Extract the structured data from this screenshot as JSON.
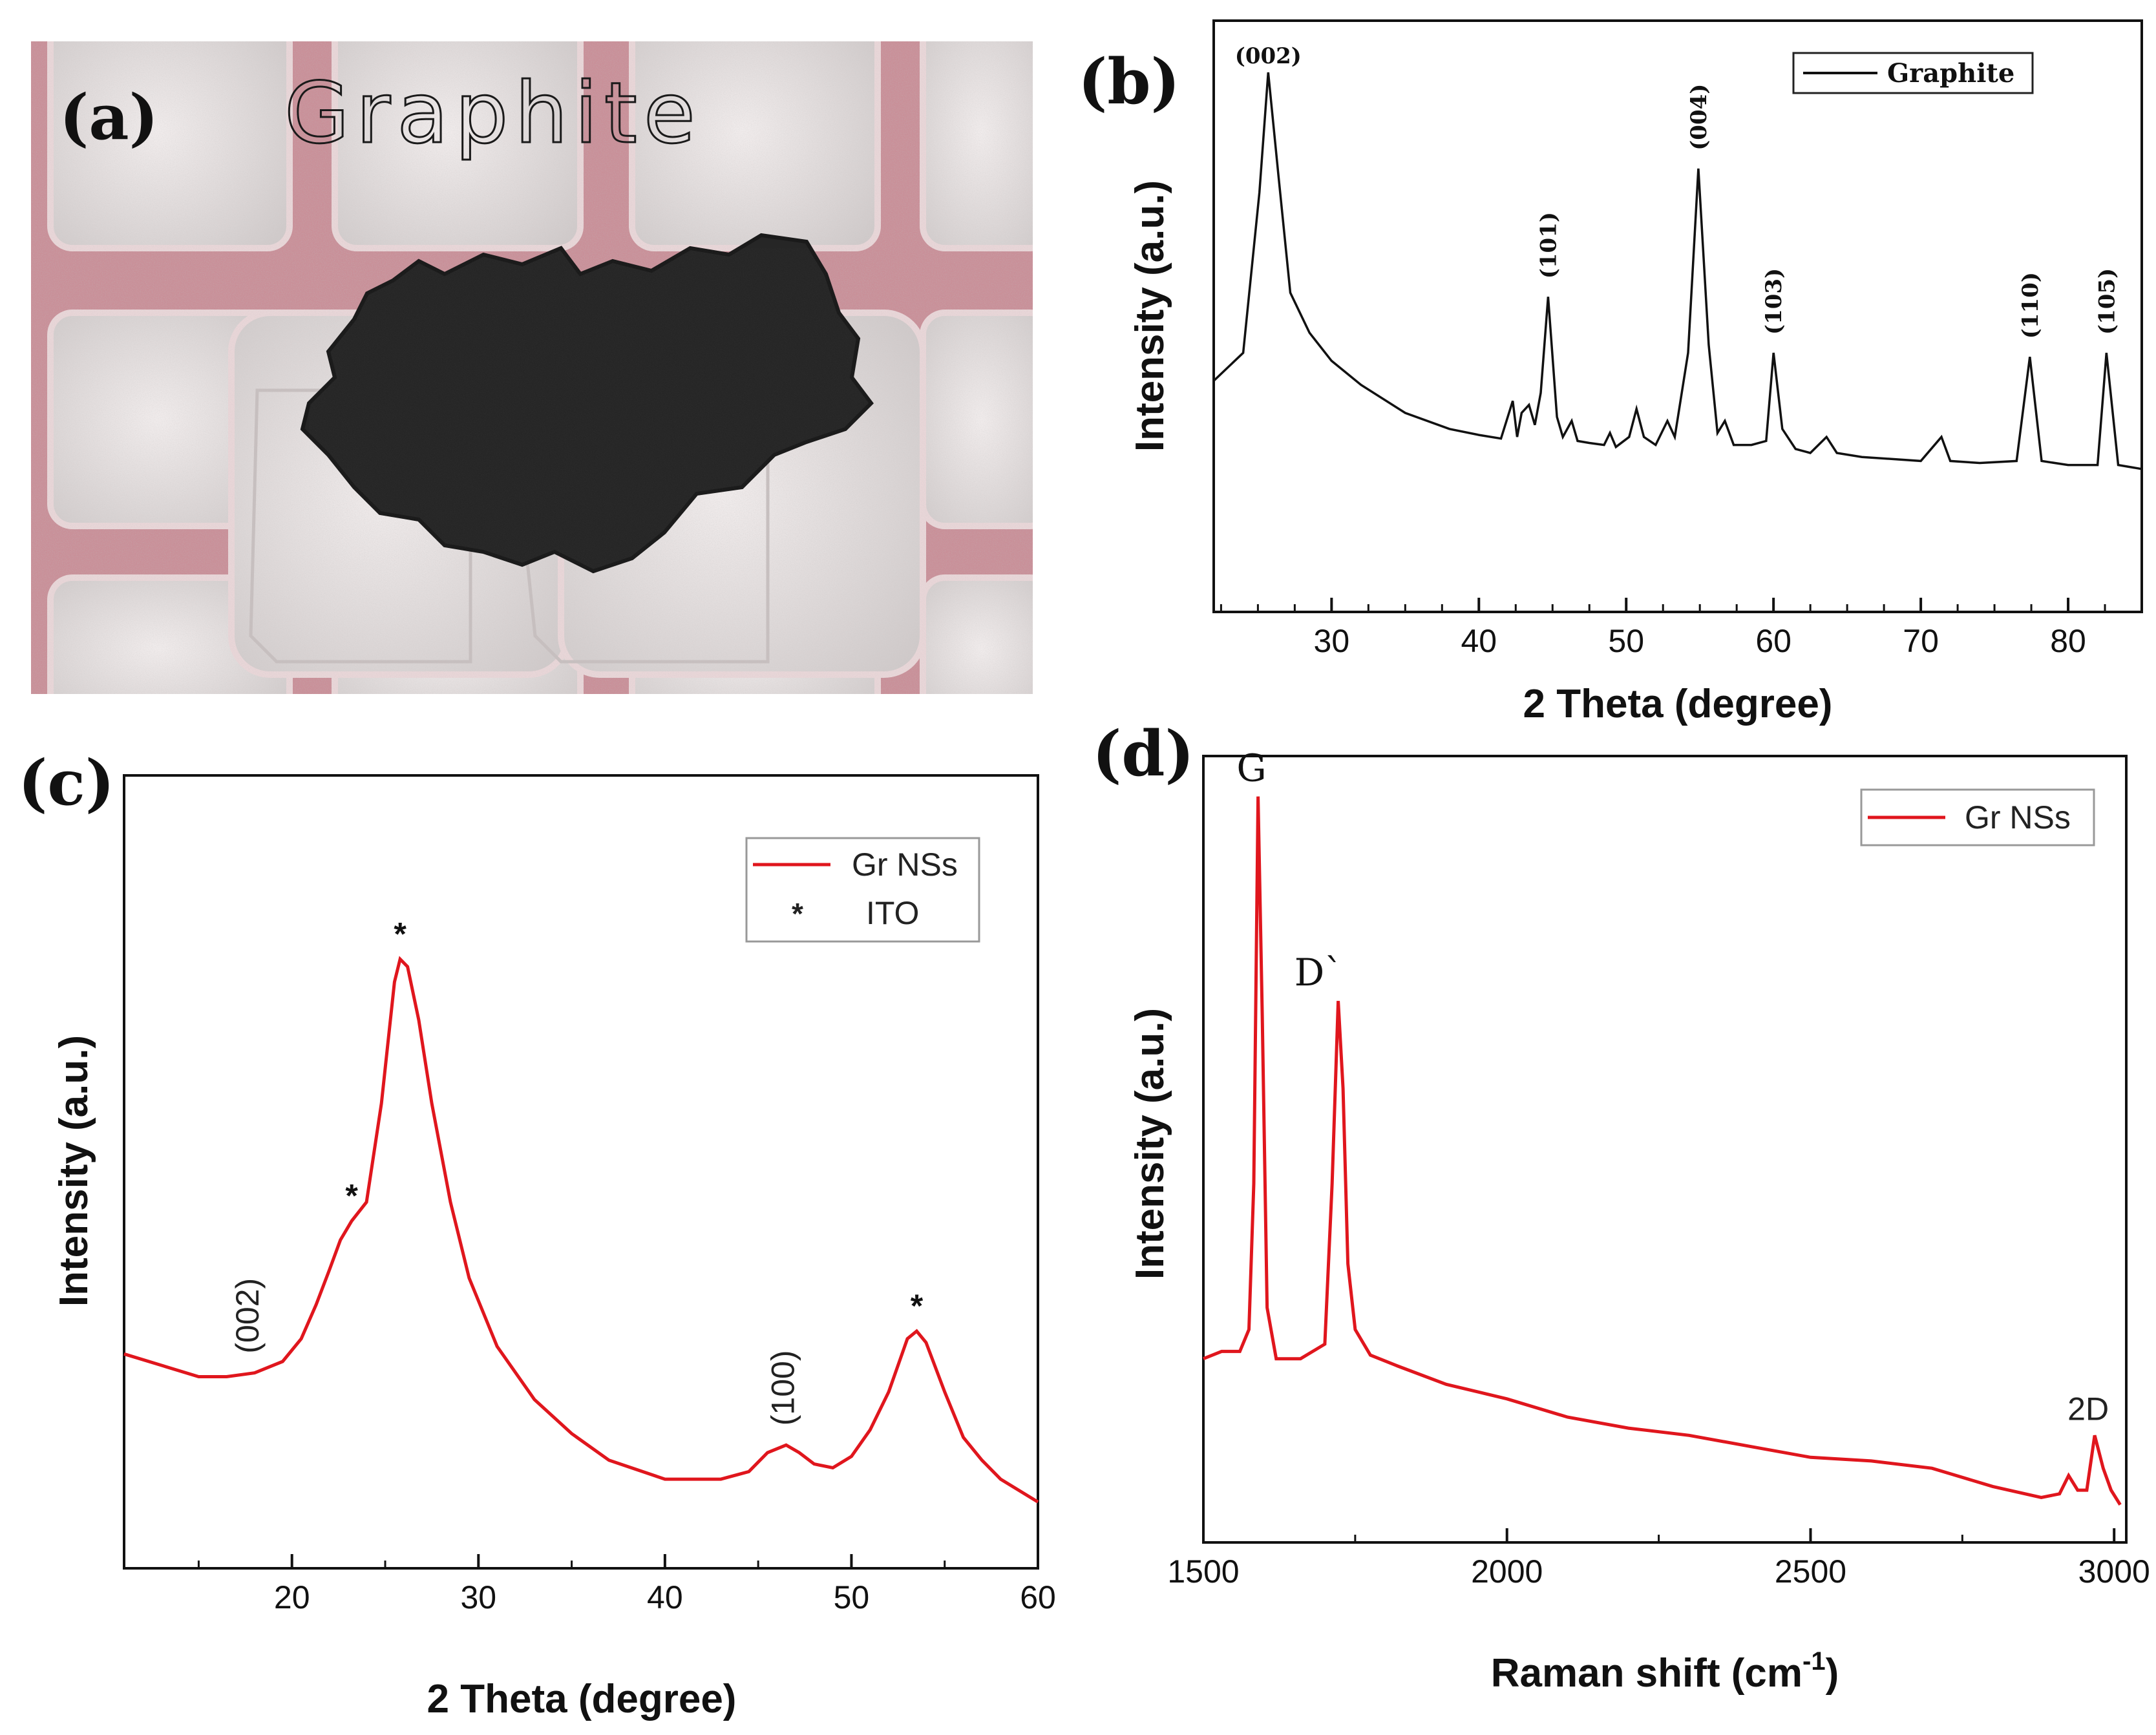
{
  "figure": {
    "panel_a": {
      "letter": "(a)",
      "handwritten_label": "Graphite"
    },
    "panel_b": {
      "letter": "(b)"
    },
    "panel_c": {
      "letter": "(c)"
    },
    "panel_d": {
      "letter": "(d)"
    }
  },
  "colors": {
    "graphite_line": "#111111",
    "grns_line": "#e0161d",
    "axis": "#111111"
  },
  "chart_data": [
    {
      "id": "b",
      "type": "line",
      "xlabel": "2 Theta (degree)",
      "ylabel": "Intensity (a.u.)",
      "xlim": [
        22,
        85
      ],
      "ylim": [
        0,
        100
      ],
      "xticks": [
        30,
        40,
        50,
        60,
        70,
        80
      ],
      "yticks_shown": false,
      "legend": {
        "position": "top-right",
        "entries": [
          "Graphite"
        ]
      },
      "series": [
        {
          "name": "Graphite",
          "x": [
            22,
            24,
            25.1,
            25.7,
            26.4,
            27.2,
            28.5,
            30,
            32,
            35,
            38,
            40,
            41.5,
            42.3,
            42.6,
            42.9,
            43.4,
            43.8,
            44.2,
            44.7,
            45.3,
            45.7,
            46.3,
            46.7,
            47.5,
            48.5,
            48.9,
            49.3,
            50.2,
            50.7,
            51.2,
            52,
            52.8,
            53.3,
            54.2,
            54.9,
            55.6,
            56.2,
            56.7,
            57.3,
            58.5,
            59.5,
            60,
            60.6,
            61.5,
            62.5,
            63.6,
            64.3,
            66,
            70,
            71.4,
            72,
            74,
            76.5,
            77.4,
            78.2,
            80,
            82,
            82.6,
            83.4,
            85
          ],
          "y": [
            23,
            30,
            70,
            100,
            74,
            45,
            35,
            28,
            22,
            15,
            11,
            9.5,
            8.6,
            18,
            9,
            15,
            17,
            12,
            20,
            44,
            14,
            9,
            13,
            8,
            7.5,
            7,
            10,
            6.5,
            9,
            16,
            9,
            7,
            13,
            9,
            30,
            76,
            32,
            10,
            13,
            7,
            7,
            8,
            30,
            11,
            6,
            5,
            9,
            5,
            4,
            3,
            9,
            3,
            2.5,
            3,
            29,
            3,
            2,
            2,
            30,
            2,
            1
          ]
        }
      ],
      "annotations": [
        {
          "text": "(002)",
          "x": 25.7,
          "y": 100,
          "orientation": "horizontal"
        },
        {
          "text": "(101)",
          "x": 44.7,
          "y": 44,
          "orientation": "vertical"
        },
        {
          "text": "(004)",
          "x": 54.9,
          "y": 76,
          "orientation": "vertical"
        },
        {
          "text": "(103)",
          "x": 60.0,
          "y": 30,
          "orientation": "vertical"
        },
        {
          "text": "(110)",
          "x": 77.4,
          "y": 29,
          "orientation": "vertical"
        },
        {
          "text": "(105)",
          "x": 82.6,
          "y": 30,
          "orientation": "vertical"
        }
      ]
    },
    {
      "id": "c",
      "type": "line",
      "xlabel": "2 Theta (degree)",
      "ylabel": "Intensity (a.u.)",
      "xlim": [
        11,
        60
      ],
      "ylim": [
        0,
        100
      ],
      "xticks": [
        20,
        30,
        40,
        50,
        60
      ],
      "yticks_shown": false,
      "legend": {
        "position": "top-right",
        "entries": [
          "Gr NSs",
          "ITO"
        ]
      },
      "series": [
        {
          "name": "Gr NSs",
          "x": [
            11,
            13,
            15,
            16.5,
            18,
            19.5,
            20.5,
            21.3,
            22,
            22.6,
            23.2,
            24,
            24.8,
            25.5,
            25.8,
            26.2,
            26.8,
            27.5,
            28.5,
            29.5,
            31,
            33,
            35,
            37,
            40,
            43,
            44.5,
            45.5,
            46.5,
            47.2,
            48,
            49,
            50,
            51,
            52,
            53,
            53.5,
            54,
            55,
            56,
            57,
            58,
            60
          ],
          "y": [
            37,
            35.5,
            34,
            34,
            34.5,
            36,
            39,
            43.5,
            48,
            52,
            54.5,
            57,
            70,
            86,
            89,
            88,
            81,
            70,
            57,
            47,
            38,
            31,
            26.5,
            23,
            20.5,
            20.5,
            21.5,
            24,
            25,
            24,
            22.5,
            22,
            23.5,
            27,
            32,
            39,
            40,
            38.5,
            32,
            26,
            23,
            20.5,
            17.5
          ]
        }
      ],
      "annotations": [
        {
          "text": "*",
          "x": 25.8,
          "y": 89
        },
        {
          "text": "*",
          "x": 23.2,
          "y": 54.5
        },
        {
          "text": "*",
          "x": 53.5,
          "y": 40
        },
        {
          "text": "(002)",
          "x": 17.8,
          "y": 34.5,
          "orientation": "vertical"
        },
        {
          "text": "(100)",
          "x": 46.5,
          "y": 25,
          "orientation": "vertical"
        }
      ]
    },
    {
      "id": "d",
      "type": "line",
      "xlabel": "Raman shift (cm-1)",
      "ylabel": "Intensity (a.u.)",
      "xlim": [
        1500,
        3020
      ],
      "ylim": [
        0,
        100
      ],
      "xticks": [
        1500,
        2000,
        2500,
        3000
      ],
      "yticks_shown": false,
      "legend": {
        "position": "top-right",
        "entries": [
          "Gr NSs"
        ]
      },
      "series": [
        {
          "name": "Gr NSs",
          "x": [
            1500,
            1530,
            1560,
            1575,
            1583,
            1590,
            1597,
            1605,
            1620,
            1640,
            1660,
            1700,
            1712,
            1722,
            1730,
            1738,
            1750,
            1775,
            1820,
            1900,
            2000,
            2100,
            2200,
            2300,
            2400,
            2500,
            2600,
            2700,
            2800,
            2880,
            2910,
            2925,
            2940,
            2955,
            2968,
            2982,
            2995,
            3010
          ],
          "y": [
            21,
            22,
            22,
            25,
            45,
            98,
            68,
            28,
            21,
            21,
            21,
            23,
            45,
            70,
            58,
            34,
            25,
            21.5,
            20,
            17.5,
            15.5,
            13,
            11.5,
            10.5,
            9,
            7.5,
            7,
            6,
            3.5,
            2,
            2.5,
            5,
            3,
            3,
            10.5,
            6,
            3,
            1
          ]
        }
      ],
      "annotations": [
        {
          "text": "G",
          "x": 1590,
          "y": 98
        },
        {
          "text": "D`",
          "x": 1722,
          "y": 70
        },
        {
          "text": "2D",
          "x": 2968,
          "y": 10.5
        }
      ]
    }
  ]
}
